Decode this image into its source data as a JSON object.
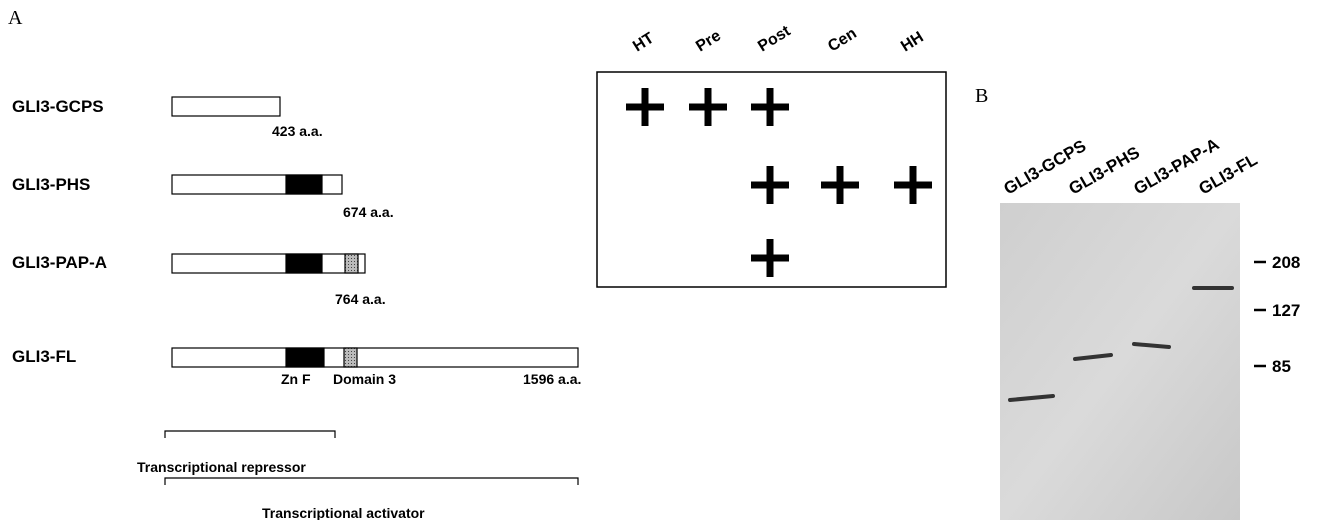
{
  "panel_a": {
    "label": "A",
    "constructs": [
      {
        "name": "GLI3-GCPS",
        "length": "423 a.a."
      },
      {
        "name": "GLI3-PHS",
        "length": "674 a.a."
      },
      {
        "name": "GLI3-PAP-A",
        "length": "764 a.a."
      },
      {
        "name": "GLI3-FL",
        "length": "1596 a.a."
      }
    ],
    "domains": [
      "Zn F",
      "Domain 3"
    ],
    "brackets": [
      "Transcriptional repressor",
      "Transcriptional activator"
    ],
    "expression": {
      "columns": [
        "HT",
        "Pre",
        "Post",
        "Cen",
        "HH"
      ],
      "rows": [
        [
          true,
          true,
          true,
          false,
          false
        ],
        [
          false,
          false,
          true,
          true,
          true
        ],
        [
          false,
          false,
          true,
          false,
          false
        ]
      ]
    }
  },
  "panel_b": {
    "label": "B",
    "lanes": [
      "GLI3-GCPS",
      "GLI3-PHS",
      "GLI3-PAP-A",
      "GLI3-FL"
    ],
    "markers": [
      "208",
      "127",
      "85"
    ]
  }
}
